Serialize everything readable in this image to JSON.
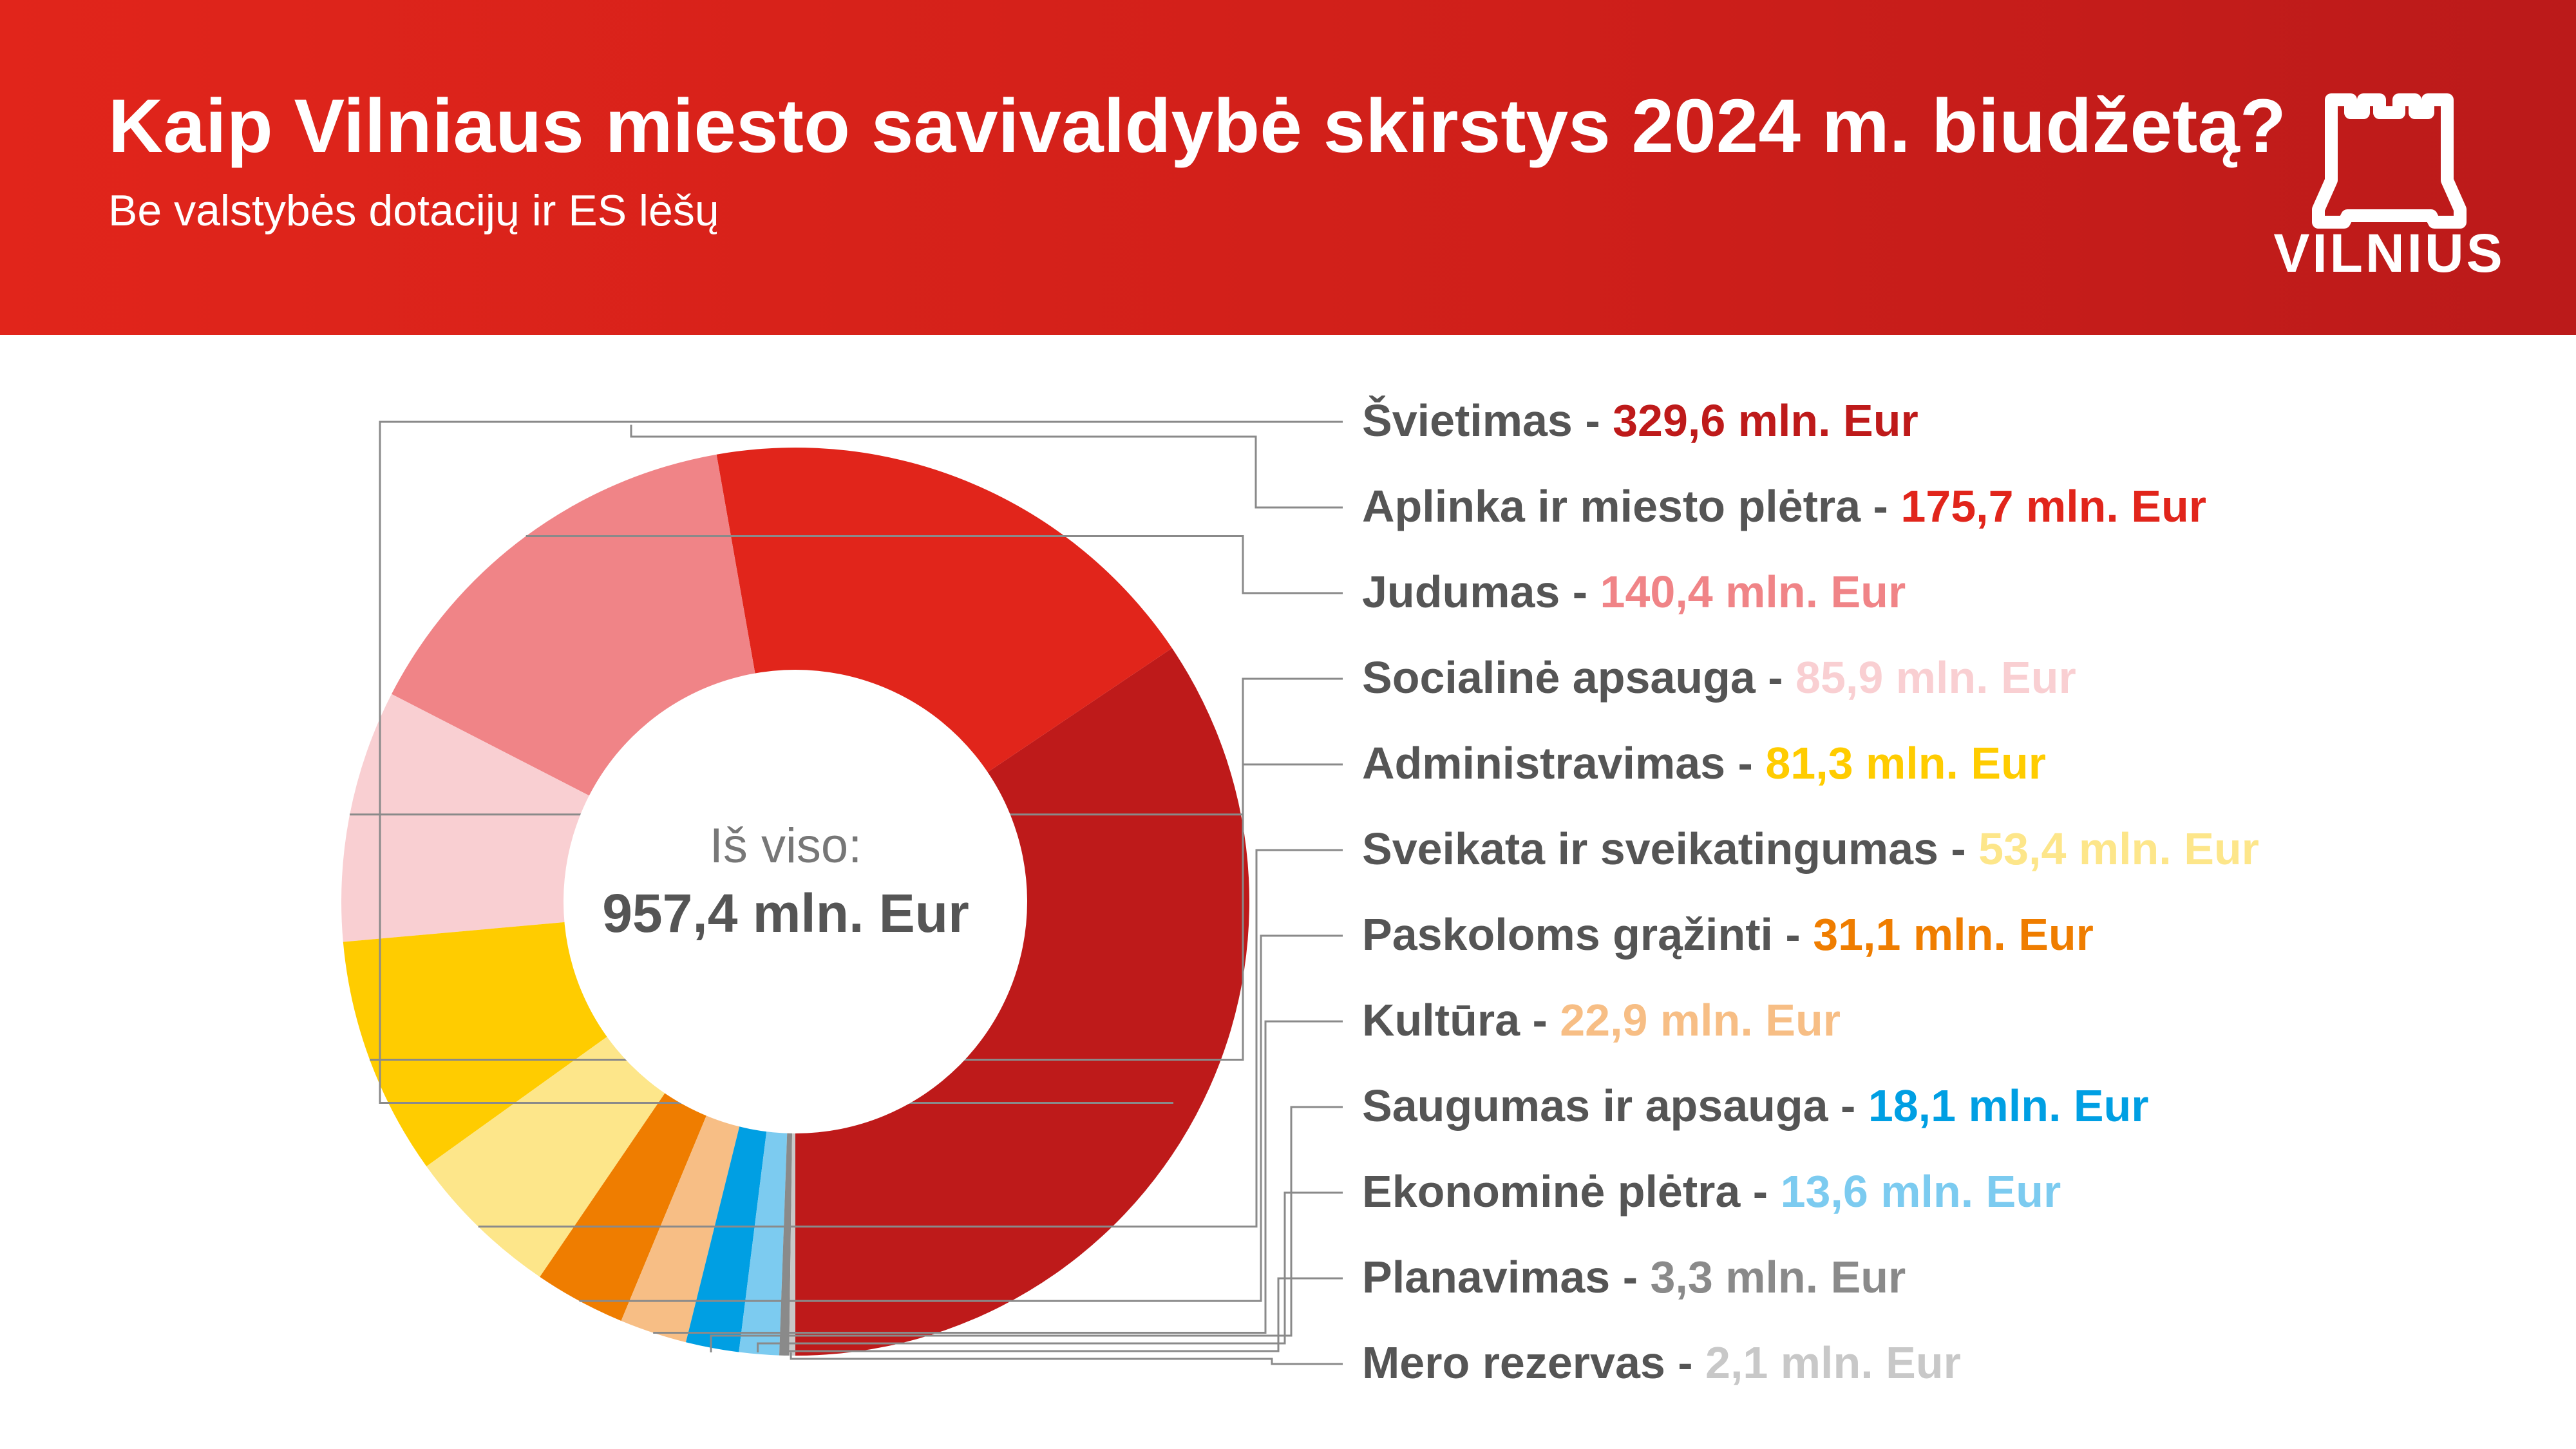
{
  "header": {
    "title": "Kaip Vilniaus miesto savivaldybė skirstys 2024 m. biudžetą?",
    "subtitle": "Be valstybės dotacijų ir ES lėšų",
    "logo_text": "VILNIUS",
    "background_color": "#d4201a"
  },
  "center": {
    "label": "Iš viso:",
    "value": "957,4 mln. Eur"
  },
  "chart_data": {
    "type": "pie",
    "subtype": "donut",
    "title": "Kaip Vilniaus miesto savivaldybė skirstys 2024 m. biudžetą?",
    "subtitle": "Be valstybės dotacijų ir ES lėšų",
    "total": 957.4,
    "unit": "mln. Eur",
    "legend_position": "right",
    "series": [
      {
        "name": "Švietimas",
        "value": 329.6,
        "label": "329,6 mln. Eur",
        "color": "#be1a1a"
      },
      {
        "name": "Aplinka ir miesto plėtra",
        "value": 175.7,
        "label": "175,7 mln. Eur",
        "color": "#e1251b"
      },
      {
        "name": "Judumas",
        "value": 140.4,
        "label": "140,4 mln. Eur",
        "color": "#f08487"
      },
      {
        "name": "Socialinė apsauga",
        "value": 85.9,
        "label": "85,9 mln. Eur",
        "color": "#f9cfd2"
      },
      {
        "name": "Administravimas",
        "value": 81.3,
        "label": "81,3 mln. Eur",
        "color": "#ffcc00"
      },
      {
        "name": "Sveikata ir sveikatingumas",
        "value": 53.4,
        "label": "53,4 mln. Eur",
        "color": "#fde68a"
      },
      {
        "name": "Paskoloms grąžinti",
        "value": 31.1,
        "label": "31,1 mln. Eur",
        "color": "#ef7d00"
      },
      {
        "name": "Kultūra",
        "value": 22.9,
        "label": "22,9 mln. Eur",
        "color": "#f7be85"
      },
      {
        "name": "Saugumas ir apsauga",
        "value": 18.1,
        "label": "18,1 mln. Eur",
        "color": "#009fe3"
      },
      {
        "name": "Ekonominė plėtra",
        "value": 13.6,
        "label": "13,6 mln. Eur",
        "color": "#7ccbf0"
      },
      {
        "name": "Planavimas",
        "value": 3.3,
        "label": "3,3 mln. Eur",
        "color": "#8a8a8a"
      },
      {
        "name": "Mero rezervas",
        "value": 2.1,
        "label": "2,1 mln. Eur",
        "color": "#c8c8c8"
      }
    ]
  }
}
